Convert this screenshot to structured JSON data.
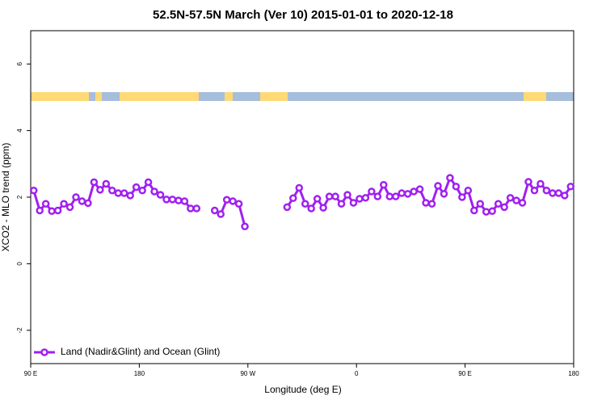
{
  "chart_data": {
    "type": "line",
    "title": "52.5N-57.5N March (Ver 10)   2015-01-01 to 2020-12-18",
    "x_label": "Longitude (deg E)",
    "y_label": "XCO2 - MLO trend (ppm)",
    "xlim": [
      90,
      540
    ],
    "xticks": [
      {
        "value": 90,
        "label": "90 E"
      },
      180,
      {
        "value": 270,
        "label": "90 W"
      },
      {
        "value": 360,
        "label": "0"
      },
      {
        "value": 450,
        "label": "90 E"
      },
      {
        "value": 540,
        "label": "180"
      }
    ],
    "ylim": [
      -3,
      7
    ],
    "yticks": [
      -2,
      0,
      2,
      4,
      6
    ],
    "legend": "bottom-left",
    "x": [
      92.5,
      97.5,
      102.5,
      107.5,
      112.5,
      117.5,
      122.5,
      127.5,
      132.5,
      137.5,
      142.5,
      147.5,
      152.5,
      157.5,
      162.5,
      167.5,
      172.5,
      177.5,
      182.5,
      187.5,
      192.5,
      197.5,
      202.5,
      207.5,
      212.5,
      217.5,
      222.5,
      227.5,
      232.5,
      237.5,
      242.5,
      247.5,
      252.5,
      257.5,
      262.5,
      267.5,
      272.5,
      277.5,
      282.5,
      287.5,
      292.5,
      297.5,
      302.5,
      307.5,
      312.5,
      317.5,
      322.5,
      327.5,
      332.5,
      337.5,
      342.5,
      347.5,
      352.5,
      357.5,
      362.5,
      367.5,
      372.5,
      377.5,
      382.5,
      387.5,
      392.5,
      397.5,
      402.5,
      407.5,
      412.5,
      417.5,
      422.5,
      427.5,
      432.5,
      437.5,
      442.5,
      447.5,
      452.5,
      457.5,
      462.5,
      467.5,
      472.5,
      477.5,
      482.5,
      487.5,
      492.5,
      497.5,
      502.5,
      507.5,
      512.5,
      517.5,
      522.5,
      527.5,
      532.5,
      537.5
    ],
    "series": [
      {
        "name": "Land (Nadir&Glint) and Ocean (Glint)",
        "color": "#a020f0",
        "values": [
          2.2,
          1.6,
          1.8,
          1.58,
          1.6,
          1.8,
          1.7,
          2.0,
          1.88,
          1.82,
          2.45,
          2.22,
          2.4,
          2.2,
          2.12,
          2.12,
          2.05,
          2.3,
          2.2,
          2.45,
          2.17,
          2.07,
          1.93,
          1.93,
          1.9,
          1.88,
          1.66,
          1.66,
          null,
          null,
          1.6,
          1.49,
          1.92,
          1.88,
          1.8,
          1.12,
          null,
          null,
          null,
          null,
          null,
          null,
          1.7,
          1.97,
          2.28,
          1.8,
          1.66,
          1.95,
          1.68,
          2.02,
          2.02,
          1.8,
          2.07,
          1.83,
          1.95,
          1.98,
          2.17,
          2.02,
          2.37,
          2.02,
          2.02,
          2.12,
          2.1,
          2.17,
          2.24,
          1.83,
          1.8,
          2.34,
          2.1,
          2.58,
          2.32,
          2.0,
          2.2,
          1.6,
          1.8,
          1.56,
          1.58,
          1.8,
          1.7,
          1.98,
          1.9,
          1.83,
          2.46,
          2.2,
          2.4,
          2.2,
          2.12,
          2.12,
          2.05,
          2.32
        ]
      }
    ]
  }
}
